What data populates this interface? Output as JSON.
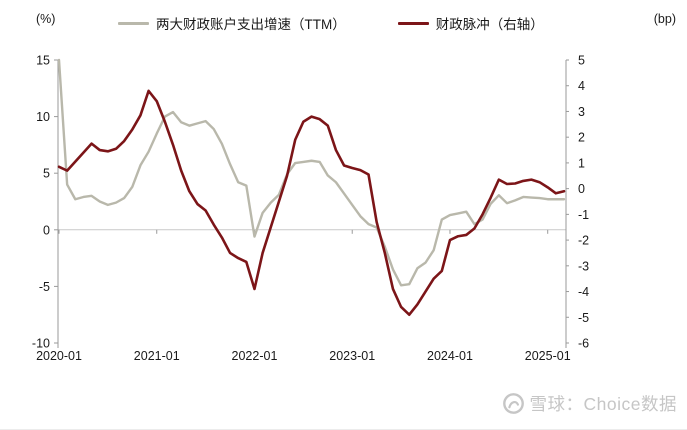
{
  "header": {
    "legend": [
      {
        "label": "两大财政账户支出增速（TTM）"
      },
      {
        "label": "财政脉冲（右轴）"
      }
    ]
  },
  "watermark": {
    "logo": "xueqiu-snowball-logo",
    "text": "雪球：Choice数据"
  },
  "chart_data": {
    "type": "line",
    "title": "",
    "x_start": "2020-01",
    "x_freq": "monthly",
    "n": 63,
    "x_tick_labels": [
      "2020-01",
      "2021-01",
      "2022-01",
      "2023-01",
      "2024-01",
      "2025-01"
    ],
    "x_tick_indices": [
      0,
      12,
      24,
      36,
      48,
      60
    ],
    "left_axis": {
      "unit": "(%)",
      "min": -10,
      "max": 15,
      "ticks": [
        15,
        10,
        5,
        0,
        -5,
        -10
      ]
    },
    "right_axis": {
      "unit": "(bp)",
      "min": -6,
      "max": 5,
      "ticks": [
        5,
        4,
        3,
        2,
        1,
        0,
        -1,
        -2,
        -3,
        -4,
        -5,
        -6
      ]
    },
    "gridlines": "zero-line-only",
    "legend_position": "top-center",
    "series": [
      {
        "name": "两大财政账户支出增速（TTM）",
        "axis": "left",
        "color": "#b9b8ab",
        "width": 2.4,
        "values": [
          15.0,
          4.0,
          2.7,
          2.9,
          3.0,
          2.5,
          2.2,
          2.4,
          2.8,
          3.8,
          5.7,
          6.9,
          8.5,
          10.0,
          10.4,
          9.5,
          9.2,
          9.4,
          9.6,
          8.9,
          7.6,
          5.8,
          4.2,
          3.9,
          -0.6,
          1.5,
          2.4,
          3.1,
          4.9,
          5.9,
          6.0,
          6.1,
          6.0,
          4.8,
          4.2,
          3.2,
          2.2,
          1.2,
          0.5,
          0.2,
          -1.5,
          -3.5,
          -4.9,
          -4.8,
          -3.4,
          -2.9,
          -1.8,
          0.9,
          1.3,
          1.45,
          1.6,
          0.5,
          0.9,
          2.3,
          3.05,
          2.35,
          2.6,
          2.9,
          2.85,
          2.8,
          2.7,
          2.7,
          2.7
        ]
      },
      {
        "name": "财政脉冲（右轴）",
        "axis": "right",
        "color": "#7c1518",
        "width": 2.6,
        "values": [
          0.85,
          0.7,
          1.05,
          1.4,
          1.75,
          1.5,
          1.45,
          1.55,
          1.85,
          2.3,
          2.85,
          3.8,
          3.4,
          2.6,
          1.7,
          0.7,
          -0.1,
          -0.6,
          -0.85,
          -1.4,
          -1.9,
          -2.5,
          -2.7,
          -2.85,
          -3.9,
          -2.5,
          -1.5,
          -0.5,
          0.5,
          1.9,
          2.6,
          2.8,
          2.7,
          2.45,
          1.5,
          0.9,
          0.8,
          0.72,
          0.55,
          -1.3,
          -2.5,
          -3.9,
          -4.6,
          -4.9,
          -4.5,
          -4.0,
          -3.5,
          -3.2,
          -2.0,
          -1.85,
          -1.8,
          -1.55,
          -1.0,
          -0.35,
          0.35,
          0.18,
          0.2,
          0.3,
          0.35,
          0.25,
          0.05,
          -0.18,
          -0.1
        ]
      }
    ]
  }
}
